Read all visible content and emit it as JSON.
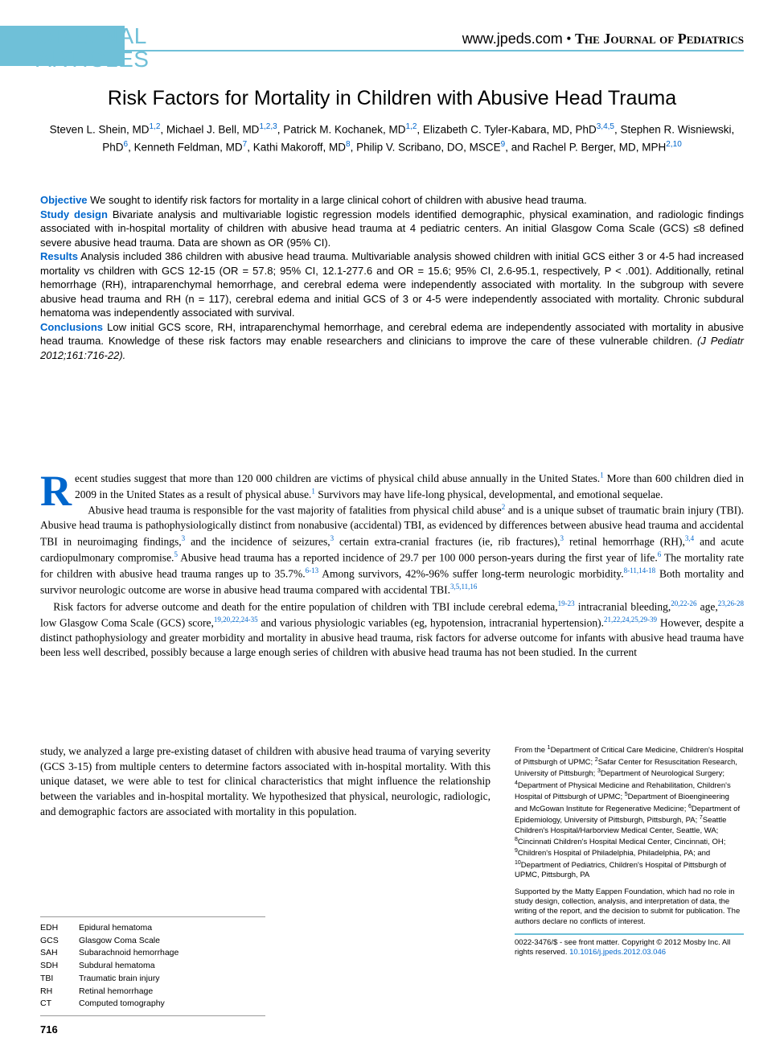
{
  "colors": {
    "accent": "#6fc0d8",
    "link": "#0066cc",
    "text": "#000000",
    "bg": "#ffffff",
    "rule": "#999999"
  },
  "typography": {
    "body_font": "Georgia",
    "ui_font": "Arial",
    "title_size_pt": 25,
    "author_size_pt": 13.5,
    "abstract_size_pt": 13,
    "body_size_pt": 13.5,
    "affil_size_pt": 9.5,
    "abbrev_size_pt": 10.5
  },
  "header": {
    "section_line1": "ORIGINAL",
    "section_line2": "ARTICLES",
    "domain": "www.jpeds.com",
    "bullet": " • ",
    "journal": "The Journal of Pediatrics"
  },
  "title": "Risk Factors for Mortality in Children with Abusive Head Trauma",
  "authors_html": "Steven L. Shein, MD<sup>1,2</sup>, Michael J. Bell, MD<sup>1,2,3</sup>, Patrick M. Kochanek, MD<sup>1,2</sup>, Elizabeth C. Tyler-Kabara, MD, PhD<sup>3,4,5</sup>, Stephen R. Wisniewski, PhD<sup>6</sup>, Kenneth Feldman, MD<sup>7</sup>, Kathi Makoroff, MD<sup>8</sup>, Philip V. Scribano, DO, MSCE<sup>9</sup>, and Rachel P. Berger, MD, MPH<sup>2,10</sup>",
  "abstract": {
    "objective_label": "Objective",
    "objective": " We sought to identify risk factors for mortality in a large clinical cohort of children with abusive head trauma.",
    "design_label": "Study design",
    "design": " Bivariate analysis and multivariable logistic regression models identified demographic, physical examination, and radiologic findings associated with in-hospital mortality of children with abusive head trauma at 4 pediatric centers. An initial Glasgow Coma Scale (GCS) ≤8 defined severe abusive head trauma. Data are shown as OR (95% CI).",
    "results_label": "Results",
    "results": " Analysis included 386 children with abusive head trauma. Multivariable analysis showed children with initial GCS either 3 or 4-5 had increased mortality vs children with GCS 12-15 (OR = 57.8; 95% CI, 12.1-277.6 and OR = 15.6; 95% CI, 2.6-95.1, respectively, P < .001). Additionally, retinal hemorrhage (RH), intraparenchymal hemorrhage, and cerebral edema were independently associated with mortality. In the subgroup with severe abusive head trauma and RH (n = 117), cerebral edema and initial GCS of 3 or 4-5 were independently associated with mortality. Chronic subdural hematoma was independently associated with survival.",
    "conclusions_label": "Conclusions",
    "conclusions": " Low initial GCS score, RH, intraparenchymal hemorrhage, and cerebral edema are independently associated with mortality in abusive head trauma. Knowledge of these risk factors may enable researchers and clinicians to improve the care of these vulnerable children. ",
    "citation": "(J Pediatr 2012;161:716-22)."
  },
  "body": {
    "dropcap": "R",
    "p1": "ecent studies suggest that more than 120 000 children are victims of physical child abuse annually in the United States.<sup>1</sup> More than 600 children died in 2009 in the United States as a result of physical abuse.<sup>1</sup> Survivors may have life-long physical, developmental, and emotional sequelae.",
    "p2": "Abusive head trauma is responsible for the vast majority of fatalities from physical child abuse<sup>2</sup> and is a unique subset of traumatic brain injury (TBI). Abusive head trauma is pathophysiologically distinct from nonabusive (accidental) TBI, as evidenced by differences between abusive head trauma and accidental TBI in neuroimaging findings,<sup>3</sup> and the incidence of seizures,<sup>3</sup> certain extra-cranial fractures (ie, rib fractures),<sup>3</sup> retinal hemorrhage (RH),<sup>3,4</sup> and acute cardiopulmonary compromise.<sup>5</sup> Abusive head trauma has a reported incidence of 29.7 per 100 000 person-years during the first year of life.<sup>6</sup> The mortality rate for children with abusive head trauma ranges up to 35.7%.<sup>6-13</sup> Among survivors, 42%-96% suffer long-term neurologic morbidity.<sup>8-11,14-18</sup> Both mortality and survivor neurologic outcome are worse in abusive head trauma compared with accidental TBI.<sup>3,5,11,16</sup>",
    "p3": "Risk factors for adverse outcome and death for the entire population of children with TBI include cerebral edema,<sup>19-23</sup> intracranial bleeding,<sup>20,22-26</sup> age,<sup>23,26-28</sup> low Glasgow Coma Scale (GCS) score,<sup>19,20,22,24-35</sup> and various physiologic variables (eg, hypotension, intracranial hypertension).<sup>21,22,24,25,29-39</sup> However, despite a distinct pathophysiology and greater morbidity and mortality in abusive head trauma, risk factors for adverse outcome for infants with abusive head trauma have been less well described, possibly because a large enough series of children with abusive head trauma has not been studied. In the current",
    "left_continued": "study, we analyzed a large pre-existing dataset of children with abusive head trauma of varying severity (GCS 3-15) from multiple centers to determine factors associated with in-hospital mortality. With this unique dataset, we were able to test for clinical characteristics that might influence the relationship between the variables and in-hospital mortality. We hypothesized that physical, neurologic, radiologic, and demographic factors are associated with mortality in this population."
  },
  "affiliations": "From the <sup>1</sup>Department of Critical Care Medicine, Children's Hospital of Pittsburgh of UPMC; <sup>2</sup>Safar Center for Resuscitation Research, University of Pittsburgh; <sup>3</sup>Department of Neurological Surgery; <sup>4</sup>Department of Physical Medicine and Rehabilitation, Children's Hospital of Pittsburgh of UPMC; <sup>5</sup>Department of Bioengineering and McGowan Institute for Regenerative Medicine; <sup>6</sup>Department of Epidemiology, University of Pittsburgh, Pittsburgh, PA; <sup>7</sup>Seattle Children's Hospital/Harborview Medical Center, Seattle, WA; <sup>8</sup>Cincinnati Children's Hospital Medical Center, Cincinnati, OH; <sup>9</sup>Children's Hospital of Philadelphia, Philadelphia, PA; and <sup>10</sup>Department of Pediatrics, Children's Hospital of Pittsburgh of UPMC, Pittsburgh, PA",
  "funding": "Supported by the Matty Eappen Foundation, which had no role in study design, collection, analysis, and interpretation of data, the writing of the report, and the decision to submit for publication. The authors declare no conflicts of interest.",
  "copyright_line": "0022-3476/$ - see front matter. Copyright © 2012 Mosby Inc. All rights reserved. ",
  "doi": "10.1016/j.jpeds.2012.03.046",
  "abbreviations": [
    {
      "abbr": "EDH",
      "def": "Epidural hematoma"
    },
    {
      "abbr": "GCS",
      "def": "Glasgow Coma Scale"
    },
    {
      "abbr": "SAH",
      "def": "Subarachnoid hemorrhage"
    },
    {
      "abbr": "SDH",
      "def": "Subdural hematoma"
    },
    {
      "abbr": "TBI",
      "def": "Traumatic brain injury"
    },
    {
      "abbr": "RH",
      "def": "Retinal hemorrhage"
    },
    {
      "abbr": "CT",
      "def": "Computed tomography"
    }
  ],
  "page_number": "716"
}
